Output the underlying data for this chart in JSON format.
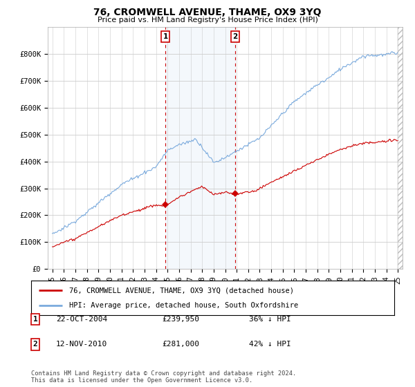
{
  "title": "76, CROMWELL AVENUE, THAME, OX9 3YQ",
  "subtitle": "Price paid vs. HM Land Registry's House Price Index (HPI)",
  "ylim": [
    0,
    900000
  ],
  "yticks": [
    0,
    100000,
    200000,
    300000,
    400000,
    500000,
    600000,
    700000,
    800000
  ],
  "ytick_labels": [
    "£0",
    "£100K",
    "£200K",
    "£300K",
    "£400K",
    "£500K",
    "£600K",
    "£700K",
    "£800K"
  ],
  "hpi_color": "#7aaadd",
  "price_color": "#cc0000",
  "sale1_date": 2004.81,
  "sale1_price": 239950,
  "sale1_label": "1",
  "sale2_date": 2010.87,
  "sale2_price": 281000,
  "sale2_label": "2",
  "background_color": "#ffffff",
  "plot_bg_color": "#ffffff",
  "grid_color": "#cccccc",
  "legend_entries": [
    "76, CROMWELL AVENUE, THAME, OX9 3YQ (detached house)",
    "HPI: Average price, detached house, South Oxfordshire"
  ],
  "footnote": "Contains HM Land Registry data © Crown copyright and database right 2024.\nThis data is licensed under the Open Government Licence v3.0.",
  "table_rows": [
    {
      "num": "1",
      "date": "22-OCT-2004",
      "price": "£239,950",
      "pct": "36% ↓ HPI"
    },
    {
      "num": "2",
      "date": "12-NOV-2010",
      "price": "£281,000",
      "pct": "42% ↓ HPI"
    }
  ]
}
